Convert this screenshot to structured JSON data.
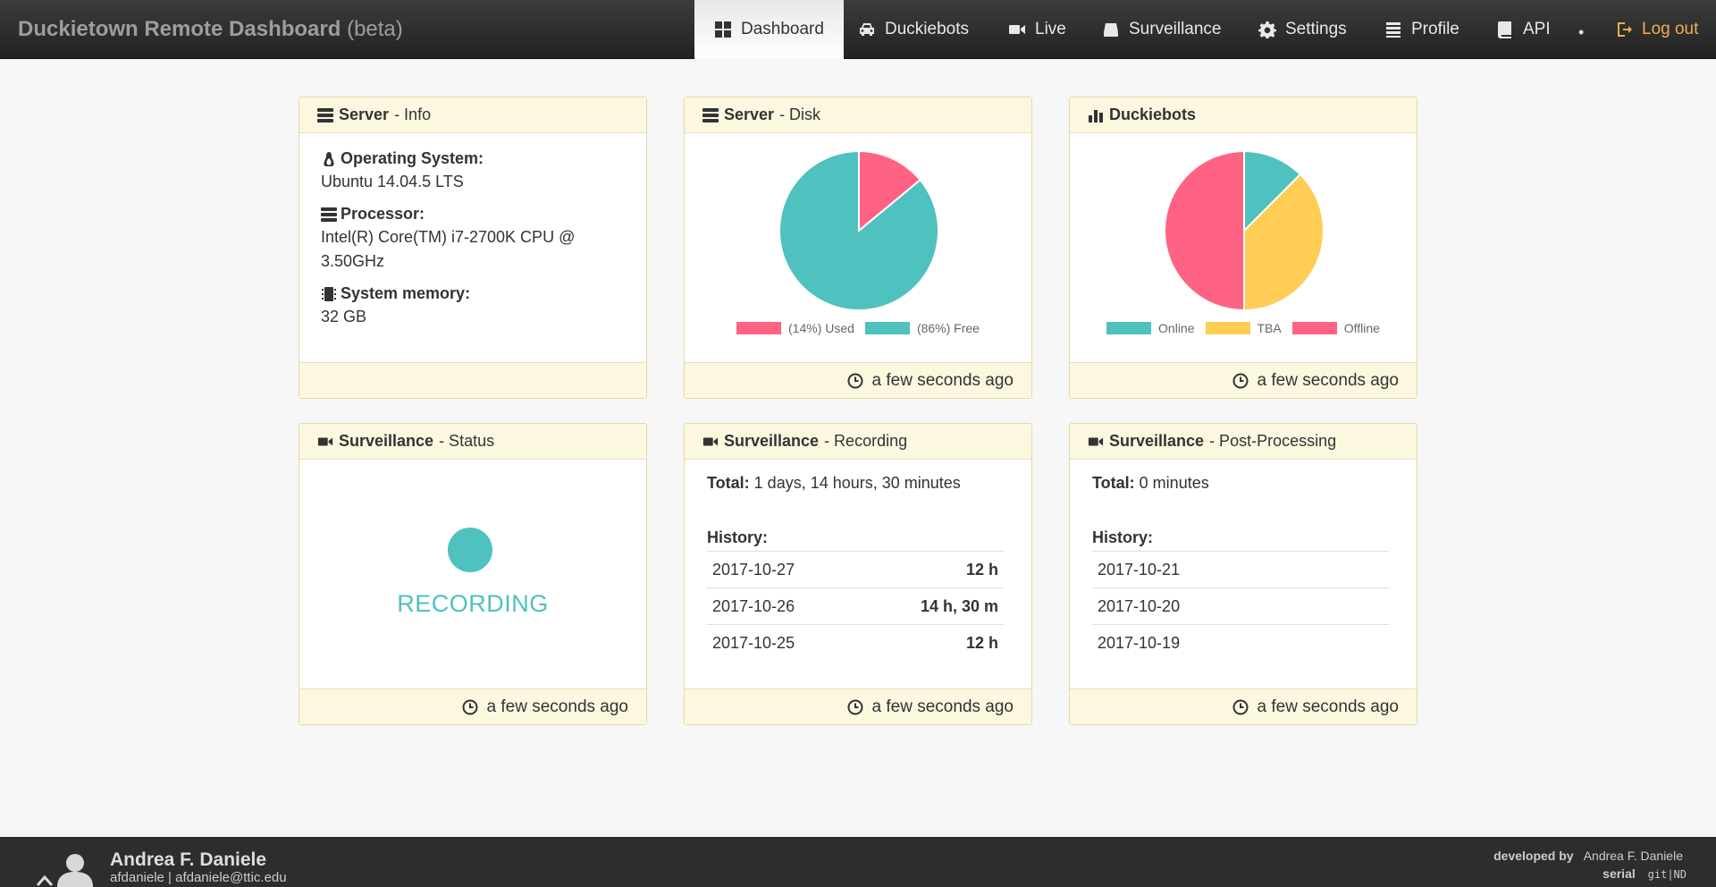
{
  "brand": {
    "title": "Duckietown Remote Dashboard",
    "suffix": "(beta)"
  },
  "nav": {
    "dashboard": "Dashboard",
    "duckiebots": "Duckiebots",
    "live": "Live",
    "surveillance": "Surveillance",
    "settings": "Settings",
    "profile": "Profile",
    "api": "API",
    "separator": "•",
    "logout": "Log out"
  },
  "server_info": {
    "title": "Server",
    "subtitle": "- Info",
    "os_label": "Operating System:",
    "os_value": "Ubuntu 14.04.5 LTS",
    "proc_label": "Processor:",
    "proc_value": "Intel(R) Core(TM) i7-2700K CPU @ 3.50GHz",
    "mem_label": "System memory:",
    "mem_value": "32 GB"
  },
  "server_disk": {
    "title": "Server",
    "subtitle": "- Disk",
    "legend_used": "(14%) Used",
    "legend_free": "(86%) Free",
    "footer": "a few seconds ago"
  },
  "duckiebots": {
    "title": "Duckiebots",
    "legend_online": "Online",
    "legend_tba": "TBA",
    "legend_offline": "Offline",
    "footer": "a few seconds ago"
  },
  "surv_status": {
    "title": "Surveillance",
    "subtitle": "- Status",
    "status": "RECORDING",
    "footer": "a few seconds ago"
  },
  "surv_recording": {
    "title": "Surveillance",
    "subtitle": "- Recording",
    "total_label": "Total:",
    "total_value": "1 days, 14 hours, 30 minutes",
    "history_label": "History:",
    "history": [
      {
        "date": "2017-10-27",
        "duration": "12 h"
      },
      {
        "date": "2017-10-26",
        "duration": "14 h, 30 m"
      },
      {
        "date": "2017-10-25",
        "duration": "12 h"
      }
    ],
    "footer": "a few seconds ago"
  },
  "surv_post": {
    "title": "Surveillance",
    "subtitle": "- Post-Processing",
    "total_label": "Total:",
    "total_value": "0 minutes",
    "history_label": "History:",
    "history": [
      {
        "date": "2017-10-21"
      },
      {
        "date": "2017-10-20"
      },
      {
        "date": "2017-10-19"
      }
    ],
    "footer": "a few seconds ago"
  },
  "colors": {
    "teal": "#4fc1bf",
    "pink": "#ff6384",
    "yellow": "#ffcd56"
  },
  "chart_data": [
    {
      "type": "pie",
      "categories": [
        "(14%) Used",
        "(86%) Free"
      ],
      "values": [
        14,
        86
      ],
      "colors": [
        "#ff6384",
        "#4fc1bf"
      ],
      "legend": "bottom"
    },
    {
      "type": "pie",
      "categories": [
        "Online",
        "TBA",
        "Offline"
      ],
      "values": [
        1,
        3,
        4
      ],
      "colors": [
        "#4fc1bf",
        "#ffcd56",
        "#ff6384"
      ],
      "legend": "bottom"
    }
  ],
  "footer": {
    "user_name": "Andrea F. Daniele",
    "user_contact": "afdaniele | afdaniele@ttic.edu",
    "dev_label": "developed by",
    "dev_name": "Andrea F. Daniele",
    "serial_label": "serial",
    "serial_value": "git|ND"
  }
}
